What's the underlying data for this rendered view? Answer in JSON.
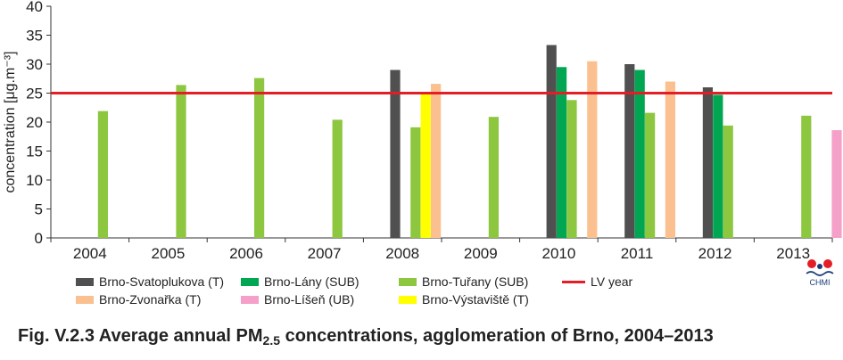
{
  "chart_data": {
    "type": "bar",
    "ylabel": "concentration [μg.m⁻³]",
    "ylim": [
      0,
      40
    ],
    "yticks": [
      0,
      5,
      10,
      15,
      20,
      25,
      30,
      35,
      40
    ],
    "categories": [
      "2004",
      "2005",
      "2006",
      "2007",
      "2008",
      "2009",
      "2010",
      "2011",
      "2012",
      "2013"
    ],
    "series": [
      {
        "name": "Brno-Svatoplukova (T)",
        "color": "#505050",
        "values": [
          null,
          null,
          null,
          null,
          29.0,
          null,
          33.3,
          30.0,
          26.0,
          null
        ]
      },
      {
        "name": "Brno-Lány (SUB)",
        "color": "#00a651",
        "values": [
          null,
          null,
          null,
          null,
          null,
          null,
          29.5,
          29.0,
          24.7,
          null
        ]
      },
      {
        "name": "Brno-Tuřany (SUB)",
        "color": "#8dc63f",
        "values": [
          21.9,
          26.4,
          27.6,
          20.4,
          19.1,
          20.9,
          23.8,
          21.6,
          19.4,
          21.1
        ]
      },
      {
        "name": "Brno-Výstaviště (T)",
        "color": "#ffff00",
        "values": [
          null,
          null,
          null,
          null,
          25.2,
          null,
          null,
          null,
          null,
          null
        ]
      },
      {
        "name": "Brno-Zvonařka (T)",
        "color": "#fbc08f",
        "values": [
          null,
          null,
          null,
          null,
          26.6,
          null,
          30.5,
          27.0,
          null,
          null
        ]
      },
      {
        "name": "Brno-Líšeň (UB)",
        "color": "#f4a0c8",
        "values": [
          null,
          null,
          null,
          null,
          null,
          null,
          null,
          null,
          null,
          18.6
        ]
      }
    ],
    "limit_line": {
      "name": "LV year",
      "value": 25,
      "color": "#e41e26"
    },
    "legend_placement": "bottom",
    "grid": false
  },
  "legend": {
    "items": [
      {
        "label": "Brno-Svatoplukova (T)",
        "color": "#505050",
        "kind": "bar"
      },
      {
        "label": "Brno-Lány (SUB)",
        "color": "#00a651",
        "kind": "bar"
      },
      {
        "label": "Brno-Tuřany (SUB)",
        "color": "#8dc63f",
        "kind": "bar"
      },
      {
        "label": "LV year",
        "color": "#e41e26",
        "kind": "line"
      },
      {
        "label": "Brno-Zvonařka (T)",
        "color": "#fbc08f",
        "kind": "bar"
      },
      {
        "label": "Brno-Líšeň (UB)",
        "color": "#f4a0c8",
        "kind": "bar"
      },
      {
        "label": "Brno-Výstaviště (T)",
        "color": "#ffff00",
        "kind": "bar"
      }
    ]
  },
  "caption": {
    "prefix": "Fig. V.2.3  Average annual PM",
    "subscript": "2.5",
    "suffix": " concentrations, agglomeration of Brno, 2004–2013"
  },
  "logo": {
    "text": "CHMI",
    "colors": [
      "#e41e26",
      "#1a3d7c"
    ]
  }
}
